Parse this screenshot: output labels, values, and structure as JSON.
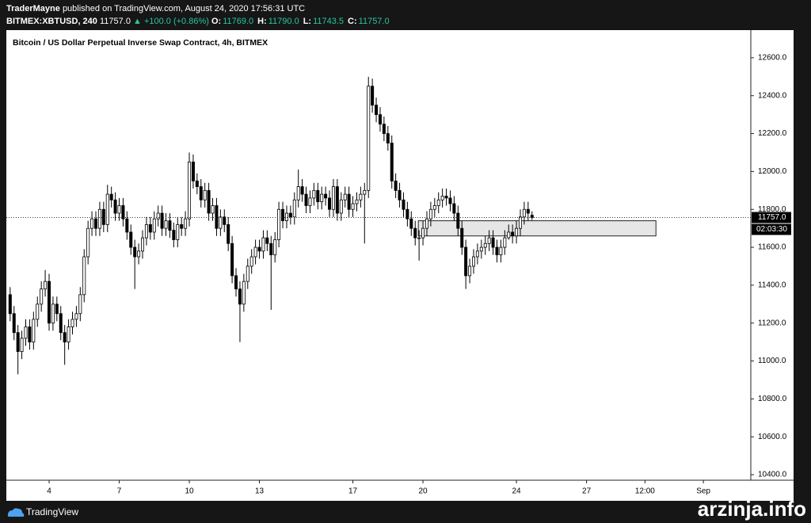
{
  "header": {
    "author": "TraderMayne",
    "published": "published on TradingView.com, August 24, 2020 17:56:31 UTC",
    "symbol": "BITMEX:XBTUSD, 240",
    "last": "11757.0",
    "change": "▲ +100.0 (+0.86%)",
    "ohlc": [
      [
        "O:",
        "11769.0"
      ],
      [
        "H:",
        "11790.0"
      ],
      [
        "L:",
        "11743.5"
      ],
      [
        "C:",
        "11757.0"
      ]
    ]
  },
  "chart_data": {
    "type": "candlestick",
    "title": "Bitcoin / US Dollar Perpetual Inverse Swap Contract, 4h, BITMEX",
    "x": [
      2.333,
      2.5,
      2.667,
      2.833,
      3,
      3.167,
      3.333,
      3.5,
      3.667,
      3.833,
      4,
      4.167,
      4.333,
      4.5,
      4.667,
      4.833,
      5,
      5.167,
      5.333,
      5.5,
      5.667,
      5.833,
      6,
      6.167,
      6.333,
      6.5,
      6.667,
      6.833,
      7,
      7.167,
      7.333,
      7.5,
      7.667,
      7.833,
      8,
      8.167,
      8.333,
      8.5,
      8.667,
      8.833,
      9,
      9.167,
      9.333,
      9.5,
      9.667,
      9.833,
      10,
      10.167,
      10.333,
      10.5,
      10.667,
      10.833,
      11,
      11.167,
      11.333,
      11.5,
      11.667,
      11.833,
      12,
      12.167,
      12.333,
      12.5,
      12.667,
      12.833,
      13,
      13.167,
      13.333,
      13.5,
      13.667,
      13.833,
      14,
      14.167,
      14.333,
      14.5,
      14.667,
      14.833,
      15,
      15.167,
      15.333,
      15.5,
      15.667,
      15.833,
      16,
      16.167,
      16.333,
      16.5,
      16.667,
      16.833,
      17,
      17.167,
      17.333,
      17.5,
      17.667,
      17.833,
      18,
      18.167,
      18.333,
      18.5,
      18.667,
      18.833,
      19,
      19.167,
      19.333,
      19.5,
      19.667,
      19.833,
      20,
      20.167,
      20.333,
      20.5,
      20.667,
      20.833,
      21,
      21.167,
      21.333,
      21.5,
      21.667,
      21.833,
      22,
      22.167,
      22.333,
      22.5,
      22.667,
      22.833,
      23,
      23.167,
      23.333,
      23.5,
      23.667,
      23.833,
      24,
      24.167,
      24.333,
      24.5,
      24.667
    ],
    "open": [
      11350,
      11250,
      11150,
      11050,
      11120,
      11180,
      11100,
      11220,
      11300,
      11380,
      11420,
      11200,
      11300,
      11250,
      11150,
      11100,
      11180,
      11220,
      11250,
      11350,
      11550,
      11700,
      11750,
      11700,
      11800,
      11720,
      11880,
      11850,
      11780,
      11820,
      11750,
      11680,
      11600,
      11550,
      11580,
      11650,
      11720,
      11680,
      11750,
      11780,
      11700,
      11740,
      11690,
      11640,
      11720,
      11700,
      11750,
      12050,
      11950,
      11920,
      11850,
      11900,
      11780,
      11820,
      11700,
      11760,
      11720,
      11620,
      11450,
      11380,
      11300,
      11420,
      11500,
      11550,
      11600,
      11580,
      11650,
      11620,
      11560,
      11640,
      11800,
      11740,
      11780,
      11760,
      11850,
      11920,
      11880,
      11820,
      11860,
      11900,
      11840,
      11880,
      11860,
      11800,
      11920,
      11780,
      11850,
      11880,
      11800,
      11830,
      11850,
      11880,
      11900,
      12450,
      12350,
      12300,
      12250,
      12200,
      12150,
      11950,
      11900,
      11850,
      11800,
      11750,
      11700,
      11650,
      11650,
      11700,
      11750,
      11800,
      11820,
      11850,
      11870,
      11860,
      11830,
      11780,
      11700,
      11600,
      11450,
      11500,
      11550,
      11580,
      11600,
      11620,
      11650,
      11600,
      11560,
      11600,
      11650,
      11680,
      11660,
      11700,
      11760,
      11800,
      11769
    ],
    "high": [
      11390,
      11290,
      11190,
      11160,
      11220,
      11220,
      11260,
      11340,
      11420,
      11480,
      11460,
      11340,
      11340,
      11290,
      11190,
      11220,
      11260,
      11290,
      11390,
      11590,
      11740,
      11790,
      11790,
      11840,
      11840,
      11930,
      11920,
      11890,
      11860,
      11860,
      11790,
      11720,
      11640,
      11620,
      11690,
      11760,
      11760,
      11790,
      11820,
      11820,
      11780,
      11780,
      11730,
      11760,
      11760,
      11790,
      12100,
      12090,
      11990,
      11960,
      11940,
      11940,
      11860,
      11860,
      11800,
      11800,
      11760,
      11660,
      11490,
      11420,
      11460,
      11540,
      11590,
      11640,
      11640,
      11690,
      11690,
      11660,
      11680,
      11840,
      11840,
      11820,
      11820,
      11890,
      12010,
      11960,
      11920,
      11900,
      11940,
      11940,
      11920,
      11920,
      11900,
      11960,
      11960,
      11890,
      11920,
      11920,
      11870,
      11890,
      11920,
      11940,
      12500,
      12490,
      12390,
      12340,
      12290,
      12240,
      12190,
      11990,
      11940,
      11890,
      11840,
      11790,
      11740,
      11690,
      11740,
      11790,
      11840,
      11860,
      11890,
      11910,
      11910,
      11900,
      11870,
      11820,
      11740,
      11640,
      11540,
      11590,
      11620,
      11640,
      11660,
      11690,
      11690,
      11640,
      11640,
      11690,
      11720,
      11720,
      11740,
      11800,
      11840,
      11840,
      11790
    ],
    "low": [
      11210,
      11110,
      10930,
      11010,
      11080,
      11060,
      11060,
      11180,
      11260,
      11340,
      11160,
      11160,
      11210,
      11110,
      10980,
      11060,
      11140,
      11180,
      11210,
      11310,
      11510,
      11660,
      11660,
      11660,
      11680,
      11680,
      11810,
      11740,
      11740,
      11710,
      11640,
      11560,
      11380,
      11510,
      11540,
      11610,
      11640,
      11640,
      11710,
      11660,
      11660,
      11650,
      11600,
      11600,
      11660,
      11660,
      11710,
      11910,
      11880,
      11810,
      11810,
      11740,
      11740,
      11660,
      11660,
      11680,
      11580,
      11410,
      11340,
      11100,
      11260,
      11380,
      11460,
      11510,
      11540,
      11540,
      11580,
      11270,
      11520,
      11600,
      11700,
      11700,
      11720,
      11720,
      11810,
      11840,
      11780,
      11780,
      11820,
      11800,
      11800,
      11820,
      11760,
      11760,
      11740,
      11740,
      11810,
      11760,
      11760,
      11790,
      11810,
      11620,
      11860,
      12310,
      12260,
      12210,
      12160,
      12110,
      11910,
      11860,
      11810,
      11760,
      11710,
      11660,
      11610,
      11530,
      11610,
      11660,
      11710,
      11760,
      11780,
      11810,
      11820,
      11790,
      11740,
      11660,
      11560,
      11380,
      11410,
      11460,
      11510,
      11540,
      11560,
      11580,
      11560,
      11520,
      11520,
      11560,
      11640,
      11620,
      11620,
      11660,
      11720,
      11740,
      11743.5
    ],
    "close": [
      11250,
      11150,
      11050,
      11120,
      11180,
      11100,
      11220,
      11300,
      11380,
      11420,
      11200,
      11300,
      11250,
      11150,
      11100,
      11180,
      11220,
      11250,
      11350,
      11550,
      11700,
      11750,
      11700,
      11800,
      11720,
      11880,
      11850,
      11780,
      11820,
      11750,
      11680,
      11600,
      11550,
      11580,
      11650,
      11720,
      11680,
      11750,
      11780,
      11700,
      11740,
      11690,
      11640,
      11720,
      11700,
      11750,
      12050,
      11950,
      11920,
      11850,
      11900,
      11780,
      11820,
      11700,
      11760,
      11720,
      11620,
      11450,
      11380,
      11300,
      11420,
      11500,
      11550,
      11600,
      11580,
      11650,
      11620,
      11560,
      11640,
      11800,
      11740,
      11780,
      11760,
      11850,
      11920,
      11880,
      11820,
      11860,
      11900,
      11840,
      11880,
      11860,
      11800,
      11920,
      11780,
      11850,
      11880,
      11800,
      11830,
      11850,
      11880,
      11900,
      12450,
      12350,
      12300,
      12250,
      12200,
      12150,
      11950,
      11900,
      11850,
      11800,
      11750,
      11700,
      11650,
      11650,
      11700,
      11750,
      11800,
      11820,
      11850,
      11870,
      11860,
      11830,
      11780,
      11700,
      11600,
      11450,
      11500,
      11550,
      11580,
      11600,
      11620,
      11650,
      11600,
      11560,
      11600,
      11650,
      11680,
      11660,
      11700,
      11760,
      11800,
      11780,
      11757
    ],
    "up_color": "#ffffff",
    "down_color": "#000000",
    "wick_color": "#000000",
    "xlim": [
      2.17,
      34.03
    ],
    "xticks": [
      4,
      7,
      10,
      13,
      17,
      20,
      24,
      27,
      {
        "value": 29.5,
        "label": "12:00"
      },
      {
        "value": 32,
        "label": "Sep"
      }
    ],
    "ylim": [
      10371,
      12746
    ],
    "yticks": [
      {
        "value": 10400,
        "label": "10400.0"
      },
      {
        "value": 10600,
        "label": "10600.0"
      },
      {
        "value": 10800,
        "label": "10800.0"
      },
      {
        "value": 11000,
        "label": "11000.0"
      },
      {
        "value": 11200,
        "label": "11200.0"
      },
      {
        "value": 11400,
        "label": "11400.0"
      },
      {
        "value": 11600,
        "label": "11600.0"
      },
      {
        "value": 11800,
        "label": "11800.0"
      },
      {
        "value": 12000,
        "label": "12000.0"
      },
      {
        "value": 12200,
        "label": "12200.0"
      },
      {
        "value": 12400,
        "label": "12400.0"
      },
      {
        "value": 12600,
        "label": "12600.0"
      }
    ],
    "grid": false,
    "last_price": {
      "value": 11757,
      "label": "11757.0"
    },
    "countdown": "02:03:30",
    "zone": {
      "x": [
        19.8,
        29.97
      ],
      "y": [
        11660,
        11740
      ],
      "color": "#e6e6e6"
    }
  },
  "footer": {
    "brand": "TradingView",
    "watermark": "arzinja.info"
  }
}
